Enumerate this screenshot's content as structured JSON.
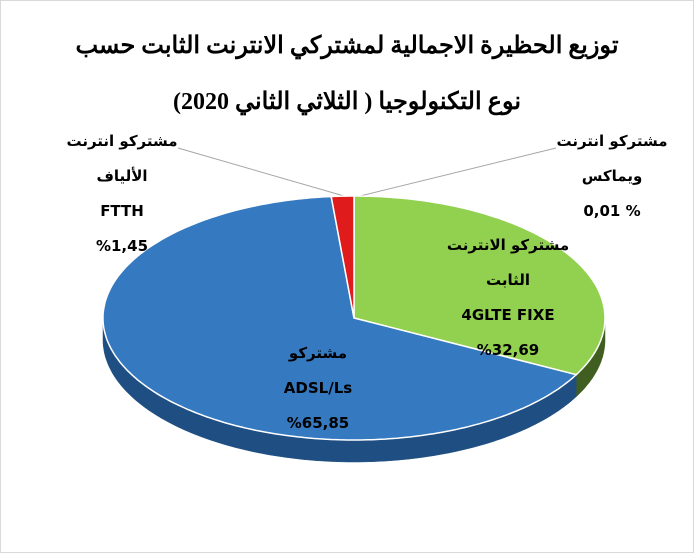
{
  "chart_data": {
    "type": "pie3d",
    "title": "توزيع الحظيرة الاجمالية لمشتركي الانترنت الثابت حسب\nنوع التكنولوجيا ( الثلاثي الثاني 2020)",
    "categories": [
      "مشتركو انترنت\nويماكس",
      "مشتركو الانترنت\nالثابت\n4GLTE FIXE",
      "مشتركو\nADSL/Ls",
      "مشتركو انترنت\nالألياف\nFTTH"
    ],
    "values": [
      0.01,
      32.69,
      65.85,
      1.45
    ],
    "value_labels": [
      "% 0,01",
      "%32,69",
      "%65,85",
      "%1,45"
    ],
    "colors": [
      "#92d050",
      "#92d050",
      "#3579c0",
      "#e01b1b"
    ],
    "side_colors": [
      "#3f5e20",
      "#3f5e20",
      "#1f4f82",
      "#8c1010"
    ]
  }
}
